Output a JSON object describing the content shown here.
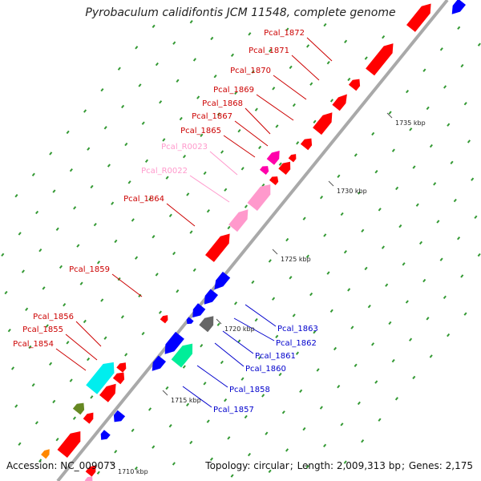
{
  "title": "Pyrobaculum calidifontis JCM 11548, complete genome",
  "footer": {
    "accession_label": "Accession:",
    "accession": "NC_009073",
    "topology_label": "Topology:",
    "topology": "circular",
    "length_label": "Length:",
    "length": "2,009,313 bp",
    "genes_label": "Genes:",
    "genes": "2,175"
  },
  "colors": {
    "forward_gene": "#ff0000",
    "reverse_gene": "#0000ff",
    "rna_gene": "#ff99cc",
    "magenta_gene": "#ff00aa",
    "label_forward": "#cc0000",
    "label_reverse": "#0000cc",
    "label_rna": "#ff99cc",
    "tick": "#339933",
    "backbone": "#999999"
  },
  "ruler": [
    {
      "kbp": 1710,
      "label": "1710 kbp"
    },
    {
      "kbp": 1715,
      "label": "1715 kbp"
    },
    {
      "kbp": 1720,
      "label": "1720 kbp"
    },
    {
      "kbp": 1725,
      "label": "1725 kbp"
    },
    {
      "kbp": 1730,
      "label": "1730 kbp"
    },
    {
      "kbp": 1735,
      "label": "1735 kbp"
    }
  ],
  "gene_labels_left": [
    {
      "name": "Pcal_1872",
      "type": "forward"
    },
    {
      "name": "Pcal_1871",
      "type": "forward"
    },
    {
      "name": "Pcal_1870",
      "type": "forward"
    },
    {
      "name": "Pcal_1869",
      "type": "forward"
    },
    {
      "name": "Pcal_1868",
      "type": "forward"
    },
    {
      "name": "Pcal_1867",
      "type": "forward"
    },
    {
      "name": "Pcal_1865",
      "type": "forward"
    },
    {
      "name": "Pcal_R0023",
      "type": "rna"
    },
    {
      "name": "Pcal_R0022",
      "type": "rna"
    },
    {
      "name": "Pcal_1864",
      "type": "forward"
    },
    {
      "name": "Pcal_1859",
      "type": "forward"
    },
    {
      "name": "Pcal_1856",
      "type": "forward"
    },
    {
      "name": "Pcal_1855",
      "type": "forward"
    },
    {
      "name": "Pcal_1854",
      "type": "forward"
    }
  ],
  "gene_labels_right": [
    {
      "name": "Pcal_1863",
      "type": "reverse"
    },
    {
      "name": "Pcal_1862",
      "type": "reverse"
    },
    {
      "name": "Pcal_1861",
      "type": "reverse"
    },
    {
      "name": "Pcal_1860",
      "type": "reverse"
    },
    {
      "name": "Pcal_1858",
      "type": "reverse"
    },
    {
      "name": "Pcal_1857",
      "type": "reverse"
    }
  ]
}
